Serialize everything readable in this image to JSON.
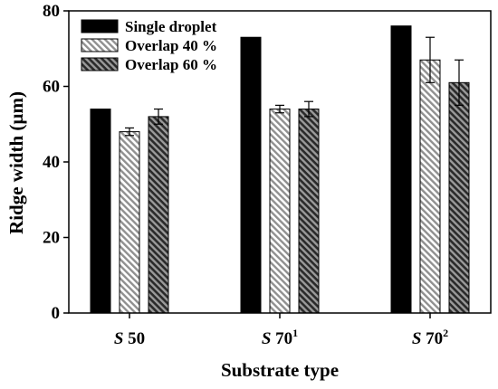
{
  "chart_data": {
    "type": "bar",
    "xlabel": "Substrate type",
    "ylabel": "Ridge width (µm)",
    "ylim": [
      0,
      80
    ],
    "yticks": [
      0,
      20,
      40,
      60,
      80
    ],
    "grid": false,
    "legend_position": "top-left",
    "categories": [
      {
        "italic": "S",
        "text": " 50",
        "sup": ""
      },
      {
        "italic": "S",
        "text": " 70",
        "sup": "1"
      },
      {
        "italic": "S",
        "text": " 70",
        "sup": "2"
      }
    ],
    "series": [
      {
        "name": "Single droplet",
        "values": [
          54,
          73,
          76
        ],
        "errors": [
          0,
          0,
          0
        ],
        "fill": "solid-black"
      },
      {
        "name": "Overlap 40 %",
        "values": [
          48,
          54,
          67
        ],
        "errors": [
          1,
          1,
          6
        ],
        "fill": "light-gray-diagonal-hatch"
      },
      {
        "name": "Overlap 60 %",
        "values": [
          52,
          54,
          61
        ],
        "errors": [
          2,
          2,
          6
        ],
        "fill": "dark-gray-diagonal-hatch"
      }
    ],
    "colors": {
      "black": "#000000",
      "light_gray": "#c8c8c8",
      "dark_gray": "#5a5a5a"
    }
  }
}
